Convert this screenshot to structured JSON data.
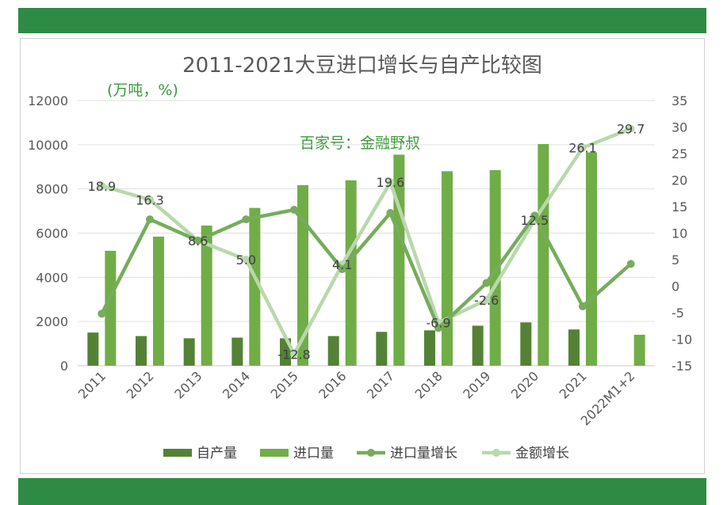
{
  "chart_data": {
    "type": "bar",
    "title": "2011-2021大豆进口增长与自产比较图",
    "unit_note": "(万吨，%)",
    "watermark": "百家号：金融野叔",
    "categories": [
      "2011",
      "2012",
      "2013",
      "2014",
      "2015",
      "2016",
      "2017",
      "2018",
      "2019",
      "2020",
      "2021",
      "2022M1+2"
    ],
    "y_left": {
      "min": 0,
      "max": 12000,
      "ticks": [
        0,
        2000,
        4000,
        6000,
        8000,
        10000,
        12000
      ]
    },
    "y_right": {
      "min": -15,
      "max": 35,
      "ticks": [
        -15,
        -10,
        -5,
        0,
        5,
        10,
        15,
        20,
        25,
        30,
        35
      ]
    },
    "grid": true,
    "legend_position": "bottom",
    "series": [
      {
        "name": "自产量",
        "type": "bar",
        "axis": "left",
        "color": "#548235",
        "values": [
          1500,
          1340,
          1240,
          1270,
          1240,
          1340,
          1530,
          1600,
          1810,
          1960,
          1640,
          null
        ]
      },
      {
        "name": "进口量",
        "type": "bar",
        "axis": "left",
        "color": "#70ad47",
        "values": [
          5200,
          5840,
          6340,
          7140,
          8170,
          8390,
          9550,
          8800,
          8850,
          10030,
          9650,
          1400
        ]
      },
      {
        "name": "进口量增长",
        "type": "line",
        "axis": "right",
        "color": "#76ac5c",
        "values": [
          -5.2,
          12.6,
          8.6,
          12.6,
          14.4,
          3.2,
          13.8,
          -7.9,
          0.6,
          13.3,
          -3.8,
          4.2
        ]
      },
      {
        "name": "金额增长",
        "type": "line",
        "axis": "right",
        "color": "#b9d8ad",
        "values": [
          18.9,
          16.3,
          8.6,
          5.0,
          -12.8,
          4.1,
          19.6,
          -6.9,
          -2.6,
          12.5,
          26.1,
          29.7
        ],
        "labels": [
          "18.9",
          "16.3",
          "8.6",
          "5.0",
          "-12.8",
          "4.1",
          "19.6",
          "-6.9",
          "-2.6",
          "12.5",
          "26.1",
          "29.7"
        ]
      }
    ]
  }
}
